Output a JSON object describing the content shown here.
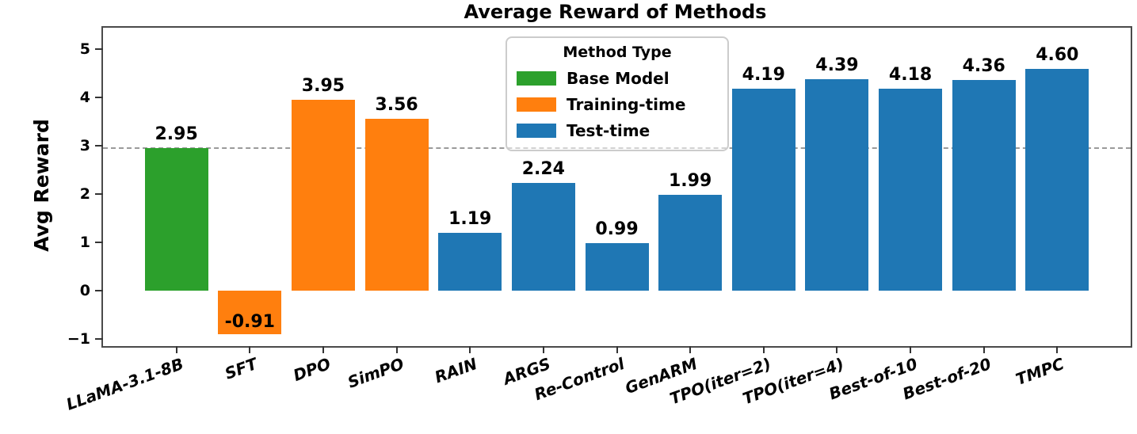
{
  "chart_data": {
    "type": "bar",
    "title": "Average Reward of Methods",
    "xlabel": "",
    "ylabel": "Avg Reward",
    "ylim": [
      -1.15,
      5.45
    ],
    "grid": false,
    "legend_position": "upper center",
    "baseline": {
      "value": 2.95,
      "color": "#9a9a9a",
      "style": "dashed"
    },
    "yticks": [
      {
        "value": 5,
        "label": "5"
      },
      {
        "value": 4,
        "label": "4"
      },
      {
        "value": 3,
        "label": "3"
      },
      {
        "value": 2,
        "label": "2"
      },
      {
        "value": 1,
        "label": "1"
      },
      {
        "value": 0,
        "label": "0"
      },
      {
        "value": -1,
        "label": "−1"
      }
    ],
    "categories": [
      "LLaMA-3.1-8B",
      "SFT",
      "DPO",
      "SimPO",
      "RAIN",
      "ARGS",
      "Re-Control",
      "GenARM",
      "TPO(iter=2)",
      "TPO(iter=4)",
      "Best-of-10",
      "Best-of-20",
      "TMPC"
    ],
    "values": [
      2.95,
      -0.91,
      3.95,
      3.56,
      1.19,
      2.24,
      0.99,
      1.99,
      4.19,
      4.39,
      4.18,
      4.36,
      4.6
    ],
    "value_labels": [
      "2.95",
      "-0.91",
      "3.95",
      "3.56",
      "1.19",
      "2.24",
      "0.99",
      "1.99",
      "4.19",
      "4.39",
      "4.18",
      "4.36",
      "4.60"
    ],
    "groups": [
      "base",
      "training",
      "training",
      "training",
      "test",
      "test",
      "test",
      "test",
      "test",
      "test",
      "test",
      "test",
      "test"
    ],
    "group_colors": {
      "base": "#2ca02c",
      "training": "#ff7f0e",
      "test": "#1f77b4"
    },
    "legend": {
      "title": "Method Type",
      "entries": [
        {
          "key": "base",
          "label": "Base Model",
          "color": "#2ca02c"
        },
        {
          "key": "training",
          "label": "Training-time",
          "color": "#ff7f0e"
        },
        {
          "key": "test",
          "label": "Test-time",
          "color": "#1f77b4"
        }
      ]
    }
  }
}
